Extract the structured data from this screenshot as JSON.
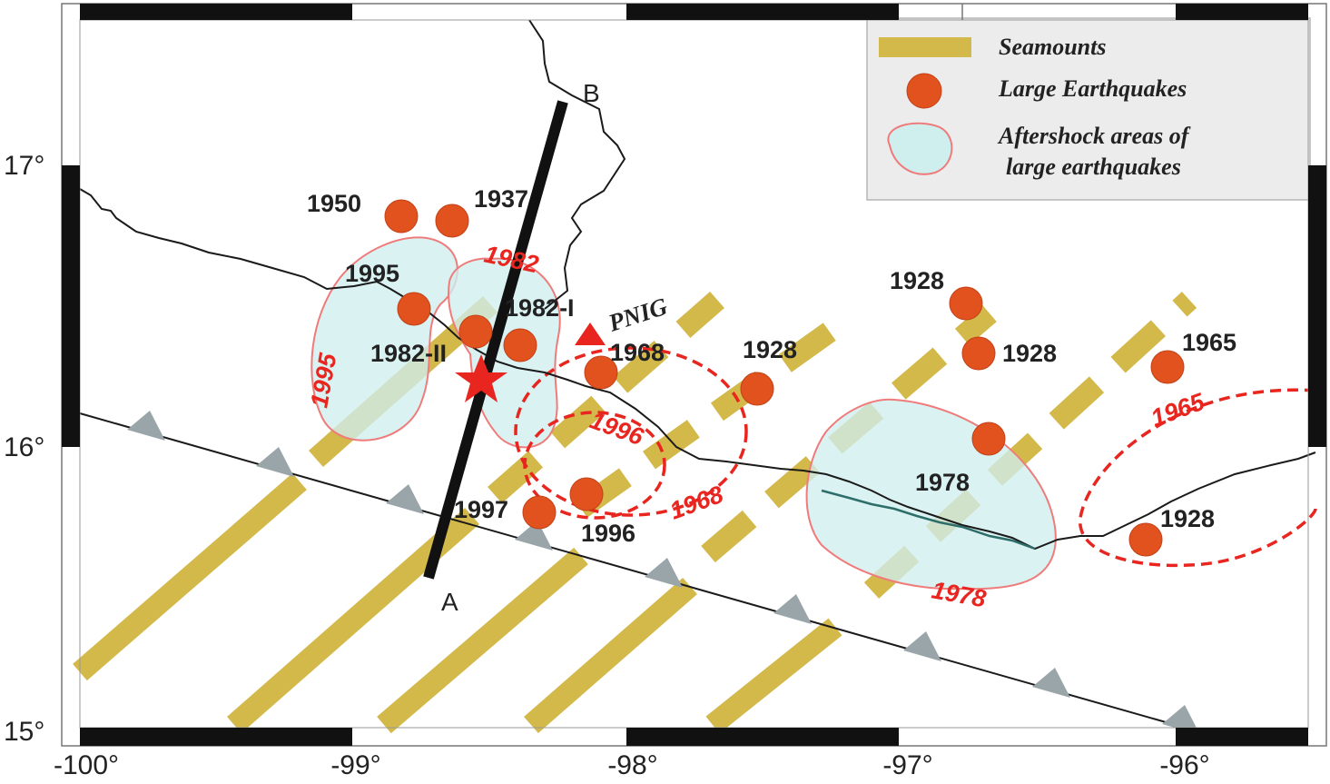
{
  "axes": {
    "x_ticks": [
      "-100°",
      "-99°",
      "-98°",
      "-97°",
      "-96°"
    ],
    "y_ticks": [
      "17°",
      "16°",
      "15°"
    ]
  },
  "legend": {
    "seamounts": "Seamounts",
    "earthquakes": "Large Earthquakes",
    "aftershock_line1": "Aftershock areas of",
    "aftershock_line2": "large earthquakes"
  },
  "earthquakes": [
    {
      "label": "1950"
    },
    {
      "label": "1937"
    },
    {
      "label": "1995"
    },
    {
      "label": "1982-I"
    },
    {
      "label": "1982-II"
    },
    {
      "label": "1968"
    },
    {
      "label": "1928"
    },
    {
      "label": "1928"
    },
    {
      "label": "1928"
    },
    {
      "label": "1928"
    },
    {
      "label": "1965"
    },
    {
      "label": "1978"
    },
    {
      "label": "1997"
    },
    {
      "label": "1996"
    }
  ],
  "zones": {
    "z1995": "1995",
    "z1982": "1982",
    "z1996": "1996",
    "z1968": "1968",
    "z1978": "1978",
    "z1965": "1965"
  },
  "profile": {
    "start": "A",
    "end": "B"
  },
  "station": {
    "name": "PNIG"
  },
  "colors": {
    "seamount": "#d3b84a",
    "earthquake": "#e2521f",
    "aftershock_fill": "#cfeeee",
    "aftershock_stroke": "#ef7b7b",
    "zone_red": "#e8251f",
    "trench_triangle": "#9aa5aa"
  }
}
